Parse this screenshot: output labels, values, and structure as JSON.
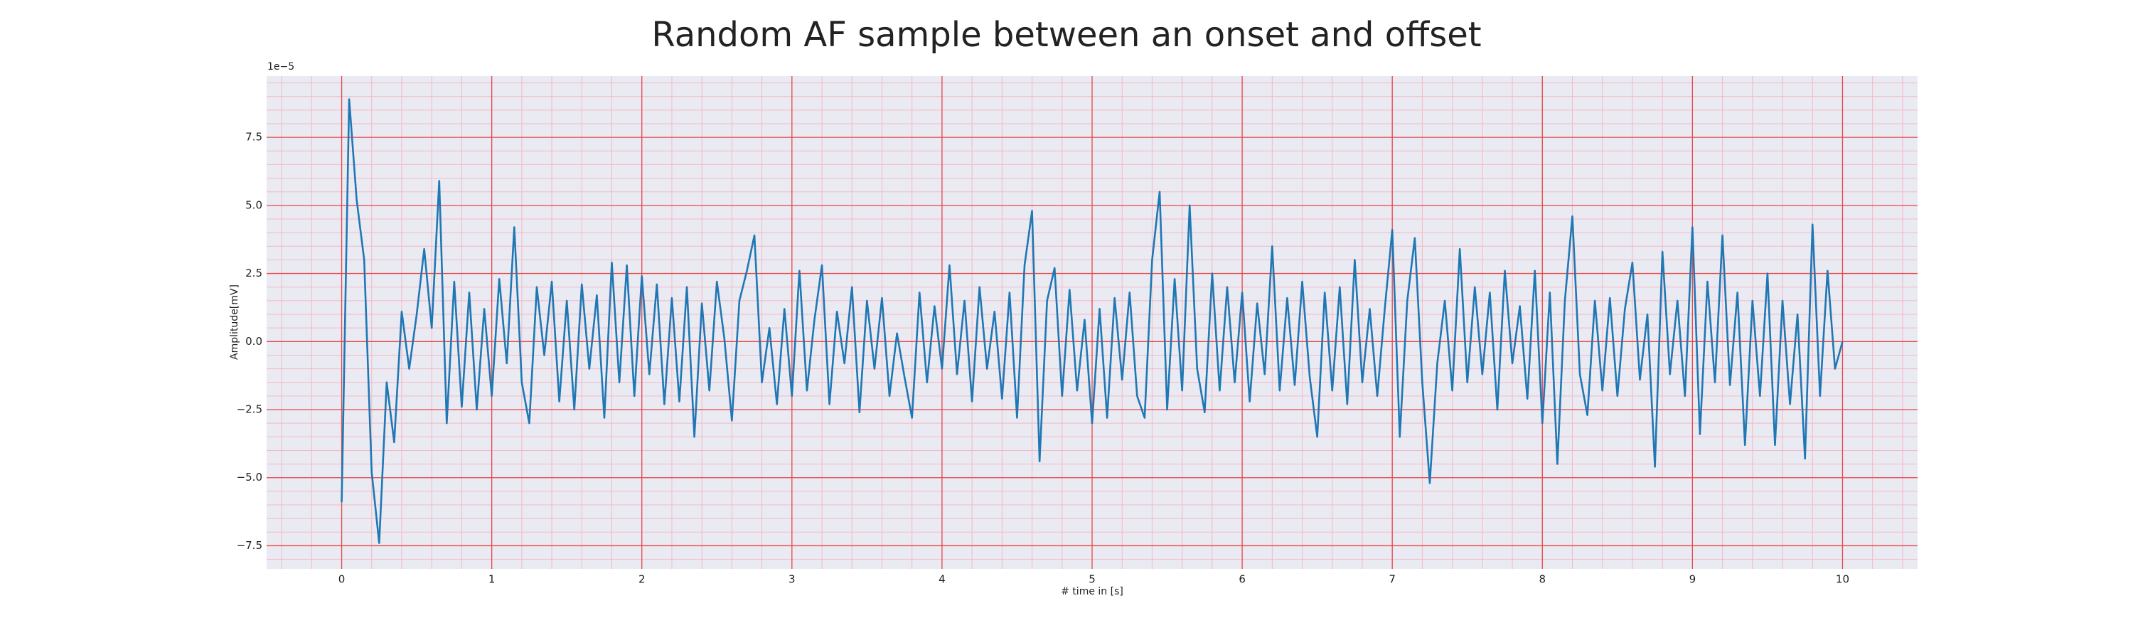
{
  "chart_data": {
    "type": "line",
    "title": "Random AF sample between an onset and offset",
    "xlabel": "# time in [s]",
    "ylabel": "Amplitude[mV]",
    "offset_text": "1e−5",
    "x": [
      0,
      0.05,
      0.1,
      0.15,
      0.2,
      0.25,
      0.3,
      0.35,
      0.4,
      0.45,
      0.5,
      0.55,
      0.6,
      0.65,
      0.7,
      0.75,
      0.8,
      0.85,
      0.9,
      0.95,
      1,
      1.05,
      1.1,
      1.15,
      1.2,
      1.25,
      1.3,
      1.35,
      1.4,
      1.45,
      1.5,
      1.55,
      1.6,
      1.65,
      1.7,
      1.75,
      1.8,
      1.85,
      1.9,
      1.95,
      2,
      2.05,
      2.1,
      2.15,
      2.2,
      2.25,
      2.3,
      2.35,
      2.4,
      2.45,
      2.5,
      2.55,
      2.6,
      2.65,
      2.7,
      2.75,
      2.8,
      2.85,
      2.9,
      2.95,
      3,
      3.05,
      3.1,
      3.15,
      3.2,
      3.25,
      3.3,
      3.35,
      3.4,
      3.45,
      3.5,
      3.55,
      3.6,
      3.65,
      3.7,
      3.75,
      3.8,
      3.85,
      3.9,
      3.95,
      4,
      4.05,
      4.1,
      4.15,
      4.2,
      4.25,
      4.3,
      4.35,
      4.4,
      4.45,
      4.5,
      4.55,
      4.6,
      4.65,
      4.7,
      4.75,
      4.8,
      4.85,
      4.9,
      4.95,
      5,
      5.05,
      5.1,
      5.15,
      5.2,
      5.25,
      5.3,
      5.35,
      5.4,
      5.45,
      5.5,
      5.55,
      5.6,
      5.65,
      5.7,
      5.75,
      5.8,
      5.85,
      5.9,
      5.95,
      6,
      6.05,
      6.1,
      6.15,
      6.2,
      6.25,
      6.3,
      6.35,
      6.4,
      6.45,
      6.5,
      6.55,
      6.6,
      6.65,
      6.7,
      6.75,
      6.8,
      6.85,
      6.9,
      6.95,
      7,
      7.05,
      7.1,
      7.15,
      7.2,
      7.25,
      7.3,
      7.35,
      7.4,
      7.45,
      7.5,
      7.55,
      7.6,
      7.65,
      7.7,
      7.75,
      7.8,
      7.85,
      7.9,
      7.95,
      8,
      8.05,
      8.1,
      8.15,
      8.2,
      8.25,
      8.3,
      8.35,
      8.4,
      8.45,
      8.5,
      8.55,
      8.6,
      8.65,
      8.7,
      8.75,
      8.8,
      8.85,
      8.9,
      8.95,
      9,
      9.05,
      9.1,
      9.15,
      9.2,
      9.25,
      9.3,
      9.35,
      9.4,
      9.45,
      9.5,
      9.55,
      9.6,
      9.65,
      9.7,
      9.75,
      9.8,
      9.85,
      9.9,
      9.95,
      10
    ],
    "values": [
      -5.9,
      8.9,
      5.2,
      3.0,
      -4.8,
      -7.4,
      -1.5,
      -3.7,
      1.1,
      -1.0,
      1.0,
      3.4,
      0.5,
      5.9,
      -3.0,
      2.2,
      -2.4,
      1.8,
      -2.5,
      1.2,
      -2.0,
      2.3,
      -0.8,
      4.2,
      -1.5,
      -3.0,
      2.0,
      -0.5,
      2.2,
      -2.2,
      1.5,
      -2.5,
      2.1,
      -1.0,
      1.7,
      -2.8,
      2.9,
      -1.5,
      2.8,
      -2.0,
      2.4,
      -1.2,
      2.1,
      -2.3,
      1.6,
      -2.2,
      2.0,
      -3.5,
      1.4,
      -1.8,
      2.2,
      0.1,
      -2.9,
      1.5,
      2.6,
      3.9,
      -1.5,
      0.5,
      -2.3,
      1.2,
      -2.0,
      2.6,
      -1.8,
      0.8,
      2.8,
      -2.3,
      1.1,
      -0.8,
      2.0,
      -2.6,
      1.5,
      -1.0,
      1.6,
      -2.0,
      0.3,
      -1.3,
      -2.8,
      1.8,
      -1.5,
      1.3,
      -1.0,
      2.8,
      -1.2,
      1.5,
      -2.2,
      2.0,
      -1.0,
      1.1,
      -2.1,
      1.8,
      -2.8,
      2.8,
      4.8,
      -4.4,
      1.5,
      2.7,
      -2.0,
      1.9,
      -1.8,
      0.8,
      -3.0,
      1.2,
      -2.8,
      1.6,
      -1.4,
      1.8,
      -2.0,
      -2.8,
      3.0,
      5.5,
      -2.5,
      2.3,
      -1.8,
      5.0,
      -1.0,
      -2.6,
      2.5,
      -1.8,
      2.0,
      -1.5,
      1.8,
      -2.2,
      1.4,
      -1.2,
      3.5,
      -1.8,
      1.6,
      -1.6,
      2.2,
      -1.3,
      -3.5,
      1.8,
      -1.8,
      2.0,
      -2.3,
      3.0,
      -1.5,
      1.2,
      -2.0,
      1.2,
      4.1,
      -3.5,
      1.5,
      3.8,
      -1.5,
      -5.2,
      -0.8,
      1.5,
      -1.8,
      3.4,
      -1.5,
      2.0,
      -1.2,
      1.8,
      -2.5,
      2.6,
      -0.8,
      1.3,
      -2.1,
      2.6,
      -3.0,
      1.8,
      -4.5,
      1.5,
      4.6,
      -1.2,
      -2.7,
      1.5,
      -1.8,
      1.6,
      -2.0,
      1.2,
      2.9,
      -1.4,
      1.0,
      -4.6,
      3.3,
      -1.2,
      1.5,
      -2.0,
      4.2,
      -3.4,
      2.2,
      -1.5,
      3.9,
      -1.6,
      1.8,
      -3.8,
      1.5,
      -2.0,
      2.5,
      -3.8,
      1.5,
      -2.3,
      1.0,
      -4.3,
      4.3,
      -2.0,
      2.6,
      -1.0,
      0.0
    ],
    "color": "#1f77b4",
    "xlim": [
      -0.5,
      10.5
    ],
    "xticks": [
      0,
      1,
      2,
      3,
      4,
      5,
      6,
      7,
      8,
      9,
      10
    ],
    "ylim": [
      -8.35,
      9.75
    ],
    "yticks": [
      {
        "value": -7.5,
        "label": "−7.5"
      },
      {
        "value": -5,
        "label": "−5.0"
      },
      {
        "value": -2.5,
        "label": "−2.5"
      },
      {
        "value": 0,
        "label": "0.0"
      },
      2.5,
      {
        "value": 5,
        "label": "5.0"
      },
      7.5
    ],
    "grid": true,
    "minor_grid": {
      "x_step": 0.2,
      "y_step": 0.5
    }
  }
}
